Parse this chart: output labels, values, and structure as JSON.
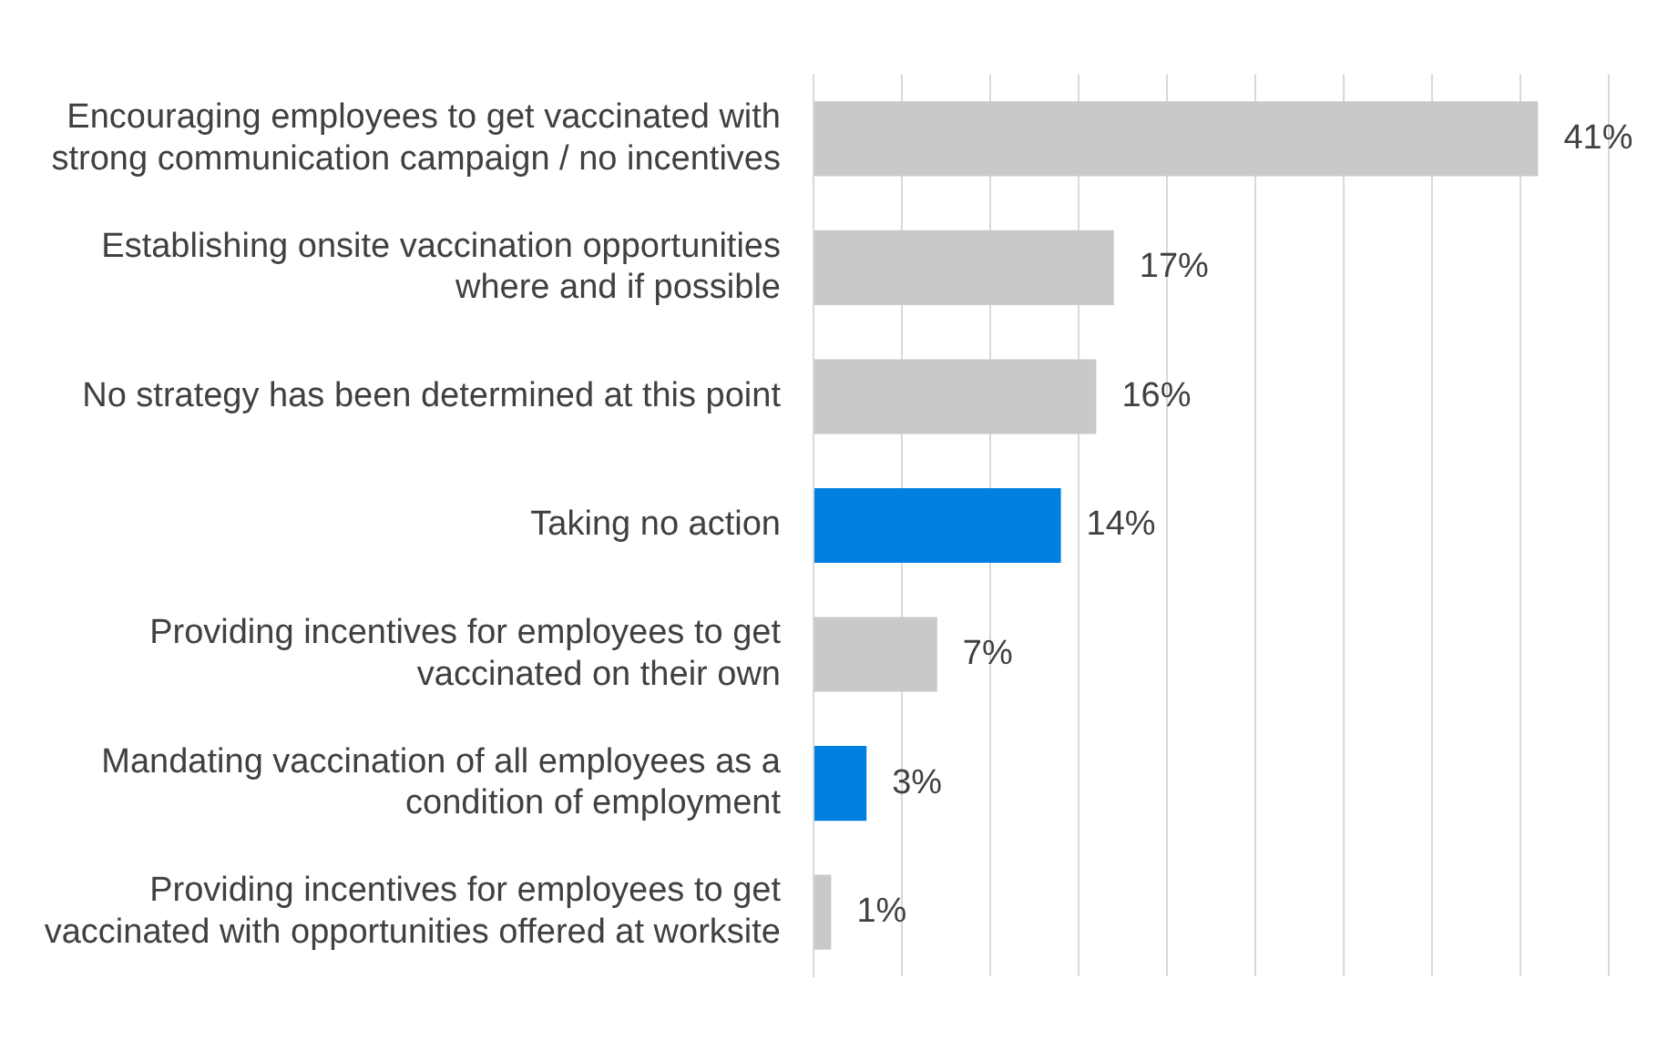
{
  "chart_data": {
    "type": "bar",
    "orientation": "horizontal",
    "categories": [
      "Encouraging employees to get vaccinated with strong communication campaign / no incentives",
      "Establishing onsite vaccination opportunities where and if possible",
      "No strategy has been determined at this point",
      "Taking no action",
      "Providing incentives for employees to get vaccinated on their own",
      "Mandating vaccination of all employees as a condition of employment",
      "Providing incentives for employees to get vaccinated with opportunities offered at worksite"
    ],
    "values": [
      41,
      17,
      16,
      14,
      7,
      3,
      1
    ],
    "colors": [
      "#c8c9ca",
      "#c8c9ca",
      "#c8c9ca",
      "#0080e0",
      "#c8c9ca",
      "#0080e0",
      "#c8c9ca"
    ],
    "value_labels": [
      "41%",
      "17%",
      "16%",
      "14%",
      "7%",
      "3%",
      "1%"
    ],
    "xlim": [
      0,
      45
    ],
    "xticks": [
      {
        "value": 0,
        "label": null
      },
      {
        "value": 5,
        "label": null
      },
      {
        "value": 10,
        "label": null
      },
      {
        "value": 15,
        "label": null
      },
      {
        "value": 20,
        "label": null
      },
      {
        "value": 25,
        "label": null
      },
      {
        "value": 30,
        "label": null
      },
      {
        "value": 35,
        "label": null
      },
      {
        "value": 40,
        "label": null
      },
      {
        "value": 45,
        "label": null
      }
    ],
    "grid": "x",
    "tick_labels": "y",
    "legend": false
  }
}
